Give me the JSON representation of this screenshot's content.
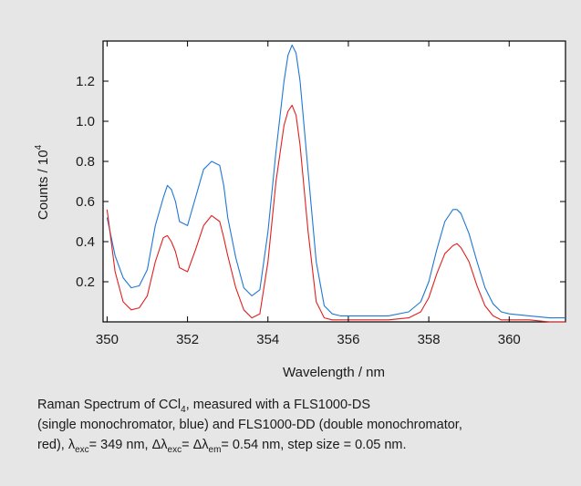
{
  "chart_data": {
    "type": "line",
    "xlabel": "Wavelength / nm",
    "ylabel_main": "Counts / 10",
    "ylabel_exp": "4",
    "xlim": [
      349.9,
      361.4
    ],
    "ylim": [
      0.0,
      1.4
    ],
    "xticks": [
      350,
      352,
      354,
      356,
      358,
      360
    ],
    "yticks": [
      0.2,
      0.4,
      0.6,
      0.8,
      1.0,
      1.2
    ],
    "xtick_labels": [
      "350",
      "352",
      "354",
      "356",
      "358",
      "360"
    ],
    "ytick_labels": [
      "0.2",
      "0.4",
      "0.6",
      "0.8",
      "1.0",
      "1.2"
    ],
    "grid": false,
    "series": [
      {
        "color": "#1f77d4",
        "x": [
          350.0,
          350.2,
          350.4,
          350.6,
          350.8,
          351.0,
          351.2,
          351.4,
          351.5,
          351.6,
          351.7,
          351.8,
          352.0,
          352.2,
          352.4,
          352.6,
          352.8,
          352.9,
          353.0,
          353.2,
          353.4,
          353.6,
          353.8,
          354.0,
          354.2,
          354.4,
          354.5,
          354.6,
          354.7,
          354.8,
          355.0,
          355.2,
          355.4,
          355.6,
          355.8,
          356.0,
          356.5,
          357.0,
          357.5,
          357.8,
          358.0,
          358.2,
          358.4,
          358.6,
          358.7,
          358.8,
          359.0,
          359.2,
          359.4,
          359.6,
          359.8,
          360.0,
          360.5,
          361.0,
          361.4
        ],
        "y": [
          0.52,
          0.33,
          0.22,
          0.17,
          0.18,
          0.26,
          0.48,
          0.62,
          0.68,
          0.66,
          0.6,
          0.5,
          0.48,
          0.62,
          0.76,
          0.8,
          0.78,
          0.68,
          0.52,
          0.32,
          0.17,
          0.13,
          0.16,
          0.45,
          0.85,
          1.2,
          1.33,
          1.38,
          1.34,
          1.2,
          0.75,
          0.3,
          0.08,
          0.04,
          0.03,
          0.03,
          0.03,
          0.03,
          0.05,
          0.1,
          0.2,
          0.36,
          0.5,
          0.56,
          0.56,
          0.54,
          0.44,
          0.3,
          0.17,
          0.09,
          0.05,
          0.04,
          0.03,
          0.02,
          0.02
        ]
      },
      {
        "color": "#e02020",
        "x": [
          350.0,
          350.2,
          350.4,
          350.6,
          350.8,
          351.0,
          351.2,
          351.4,
          351.5,
          351.6,
          351.7,
          351.8,
          352.0,
          352.2,
          352.4,
          352.6,
          352.8,
          352.9,
          353.0,
          353.2,
          353.4,
          353.6,
          353.8,
          354.0,
          354.2,
          354.4,
          354.5,
          354.6,
          354.7,
          354.8,
          355.0,
          355.2,
          355.4,
          355.6,
          355.8,
          356.0,
          356.5,
          357.0,
          357.5,
          357.8,
          358.0,
          358.2,
          358.4,
          358.6,
          358.7,
          358.8,
          359.0,
          359.2,
          359.4,
          359.6,
          359.8,
          360.0,
          360.5,
          361.0,
          361.4
        ],
        "y": [
          0.56,
          0.25,
          0.1,
          0.06,
          0.07,
          0.13,
          0.3,
          0.42,
          0.43,
          0.4,
          0.35,
          0.27,
          0.25,
          0.36,
          0.48,
          0.53,
          0.5,
          0.42,
          0.33,
          0.17,
          0.06,
          0.02,
          0.04,
          0.3,
          0.7,
          0.98,
          1.05,
          1.08,
          1.03,
          0.88,
          0.45,
          0.1,
          0.02,
          0.01,
          0.01,
          0.01,
          0.01,
          0.01,
          0.02,
          0.05,
          0.12,
          0.24,
          0.34,
          0.38,
          0.39,
          0.37,
          0.3,
          0.18,
          0.08,
          0.03,
          0.01,
          0.01,
          0.01,
          0.0,
          0.0
        ]
      }
    ]
  },
  "caption": {
    "line1_pre": "Raman Spectrum of CCl",
    "line1_sub": "4",
    "line1_post": ", measured with a FLS1000-DS",
    "line2": "(single monochromator, blue) and FLS1000-DD (double monochromator,",
    "line3_a": "red), λ",
    "line3_sub1": "exc",
    "line3_b": "= 349 nm, Δλ",
    "line3_sub2": "exc",
    "line3_c": "= Δλ",
    "line3_sub3": "em",
    "line3_d": "= 0.54 nm, step size = 0.05 nm."
  }
}
